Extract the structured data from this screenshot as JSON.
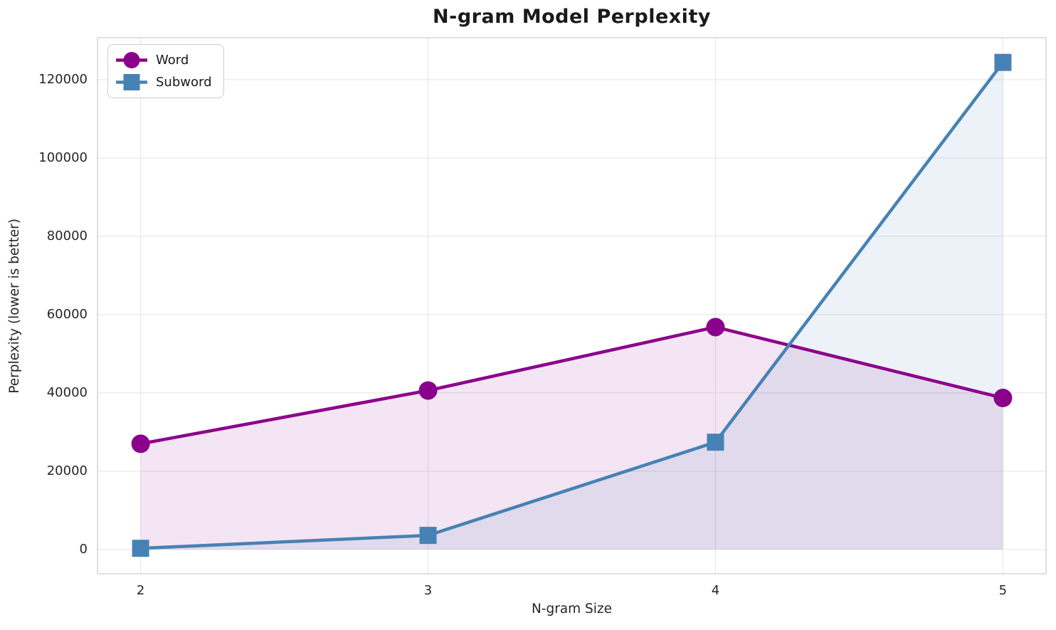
{
  "colors": {
    "background": "#ffffff",
    "grid": "#e9e9e9",
    "spine": "#d5d5d5",
    "tick_text": "#262626",
    "title_text": "#1a1a1a",
    "word_series": "#8B008B",
    "subword_series": "#4682B4"
  },
  "chart_data": {
    "type": "line",
    "title": "N-gram Model Perplexity",
    "xlabel": "N-gram Size",
    "ylabel": "Perplexity (lower is better)",
    "x": [
      2,
      3,
      4,
      5
    ],
    "series": [
      {
        "name": "Word",
        "values": [
          27000,
          40600,
          56800,
          38700
        ],
        "color": "#8B008B",
        "marker": "circle",
        "fill_to_zero": true,
        "fill_opacity": 0.1
      },
      {
        "name": "Subword",
        "values": [
          300,
          3600,
          27400,
          124400
        ],
        "color": "#4682B4",
        "marker": "square",
        "fill_to_zero": true,
        "fill_opacity": 0.1
      }
    ],
    "xticks": [
      2,
      3,
      4,
      5
    ],
    "yticks": [
      0,
      20000,
      40000,
      60000,
      80000,
      100000,
      120000
    ],
    "xlim": [
      1.85,
      5.15
    ],
    "ylim": [
      -6200,
      130700
    ],
    "grid": true,
    "legend_position": "upper-left"
  }
}
